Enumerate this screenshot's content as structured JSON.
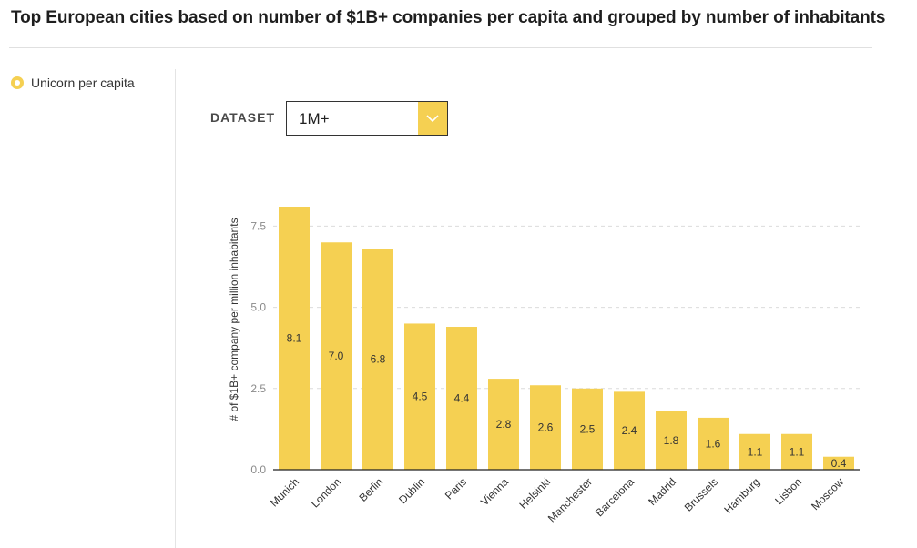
{
  "title": "Top European cities based on number of $1B+ companies per capita and grouped by number of inhabitants",
  "legend": {
    "label": "Unicorn per capita",
    "color": "#f5d052"
  },
  "dataset": {
    "label": "DATASET",
    "selected": "1M+"
  },
  "chart_data": {
    "type": "bar",
    "categories": [
      "Munich",
      "London",
      "Berlin",
      "Dublin",
      "Paris",
      "Vienna",
      "Helsinki",
      "Manchester",
      "Barcelona",
      "Madrid",
      "Brussels",
      "Hamburg",
      "Lisbon",
      "Moscow"
    ],
    "values": [
      8.1,
      7.0,
      6.8,
      4.5,
      4.4,
      2.8,
      2.6,
      2.5,
      2.4,
      1.8,
      1.6,
      1.1,
      1.1,
      0.4
    ],
    "value_labels": [
      "8.1",
      "7.0",
      "6.8",
      "4.5",
      "4.4",
      "2.8",
      "2.6",
      "2.5",
      "2.4",
      "1.8",
      "1.6",
      "1.1",
      "1.1",
      "0.4"
    ],
    "ylabel": "# of $1B+ company per million inhabitants",
    "yticks": [
      0,
      2.5,
      5,
      7.5
    ],
    "ytick_labels": [
      "0.0",
      "2.5",
      "5.0",
      "7.5"
    ],
    "ylim": [
      0,
      8.1
    ],
    "grid": true,
    "bar_color": "#f5d052"
  }
}
